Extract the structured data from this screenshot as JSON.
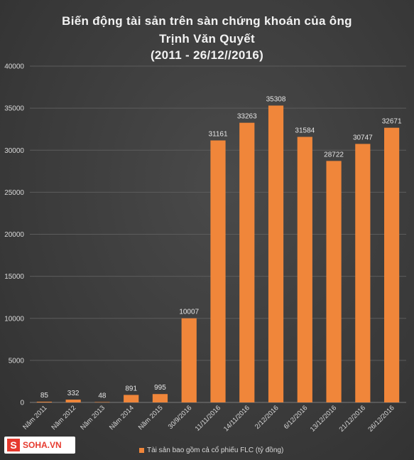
{
  "chart_data": {
    "type": "bar",
    "title_lines": [
      "Biến động tài sản trên sàn chứng khoán của ông",
      "Trịnh Văn Quyết",
      "(2011 - 26/12//2016)"
    ],
    "categories": [
      "Năm 2011",
      "Năm 2012",
      "Năm 2013",
      "Năm 2014",
      "Năm 2015",
      "30/9/2016",
      "11/11/2016",
      "14/11/2016",
      "2/12/2016",
      "6/12/2016",
      "13/12/2016",
      "21/12/2016",
      "26/12/2016"
    ],
    "series": [
      {
        "name": "Tài sản bao gồm cả cổ phiếu FLC (tỷ đồng)",
        "values": [
          85,
          332,
          48,
          891,
          995,
          10007,
          31161,
          33263,
          35308,
          31584,
          28722,
          30747,
          32671
        ]
      }
    ],
    "yticks": [
      0,
      5000,
      10000,
      15000,
      20000,
      25000,
      30000,
      35000,
      40000
    ],
    "ylim": [
      0,
      40000
    ],
    "grid": true,
    "legend_position": "bottom",
    "bar_color": "#f0863a"
  },
  "watermark": {
    "text": "SOHA.VN"
  }
}
